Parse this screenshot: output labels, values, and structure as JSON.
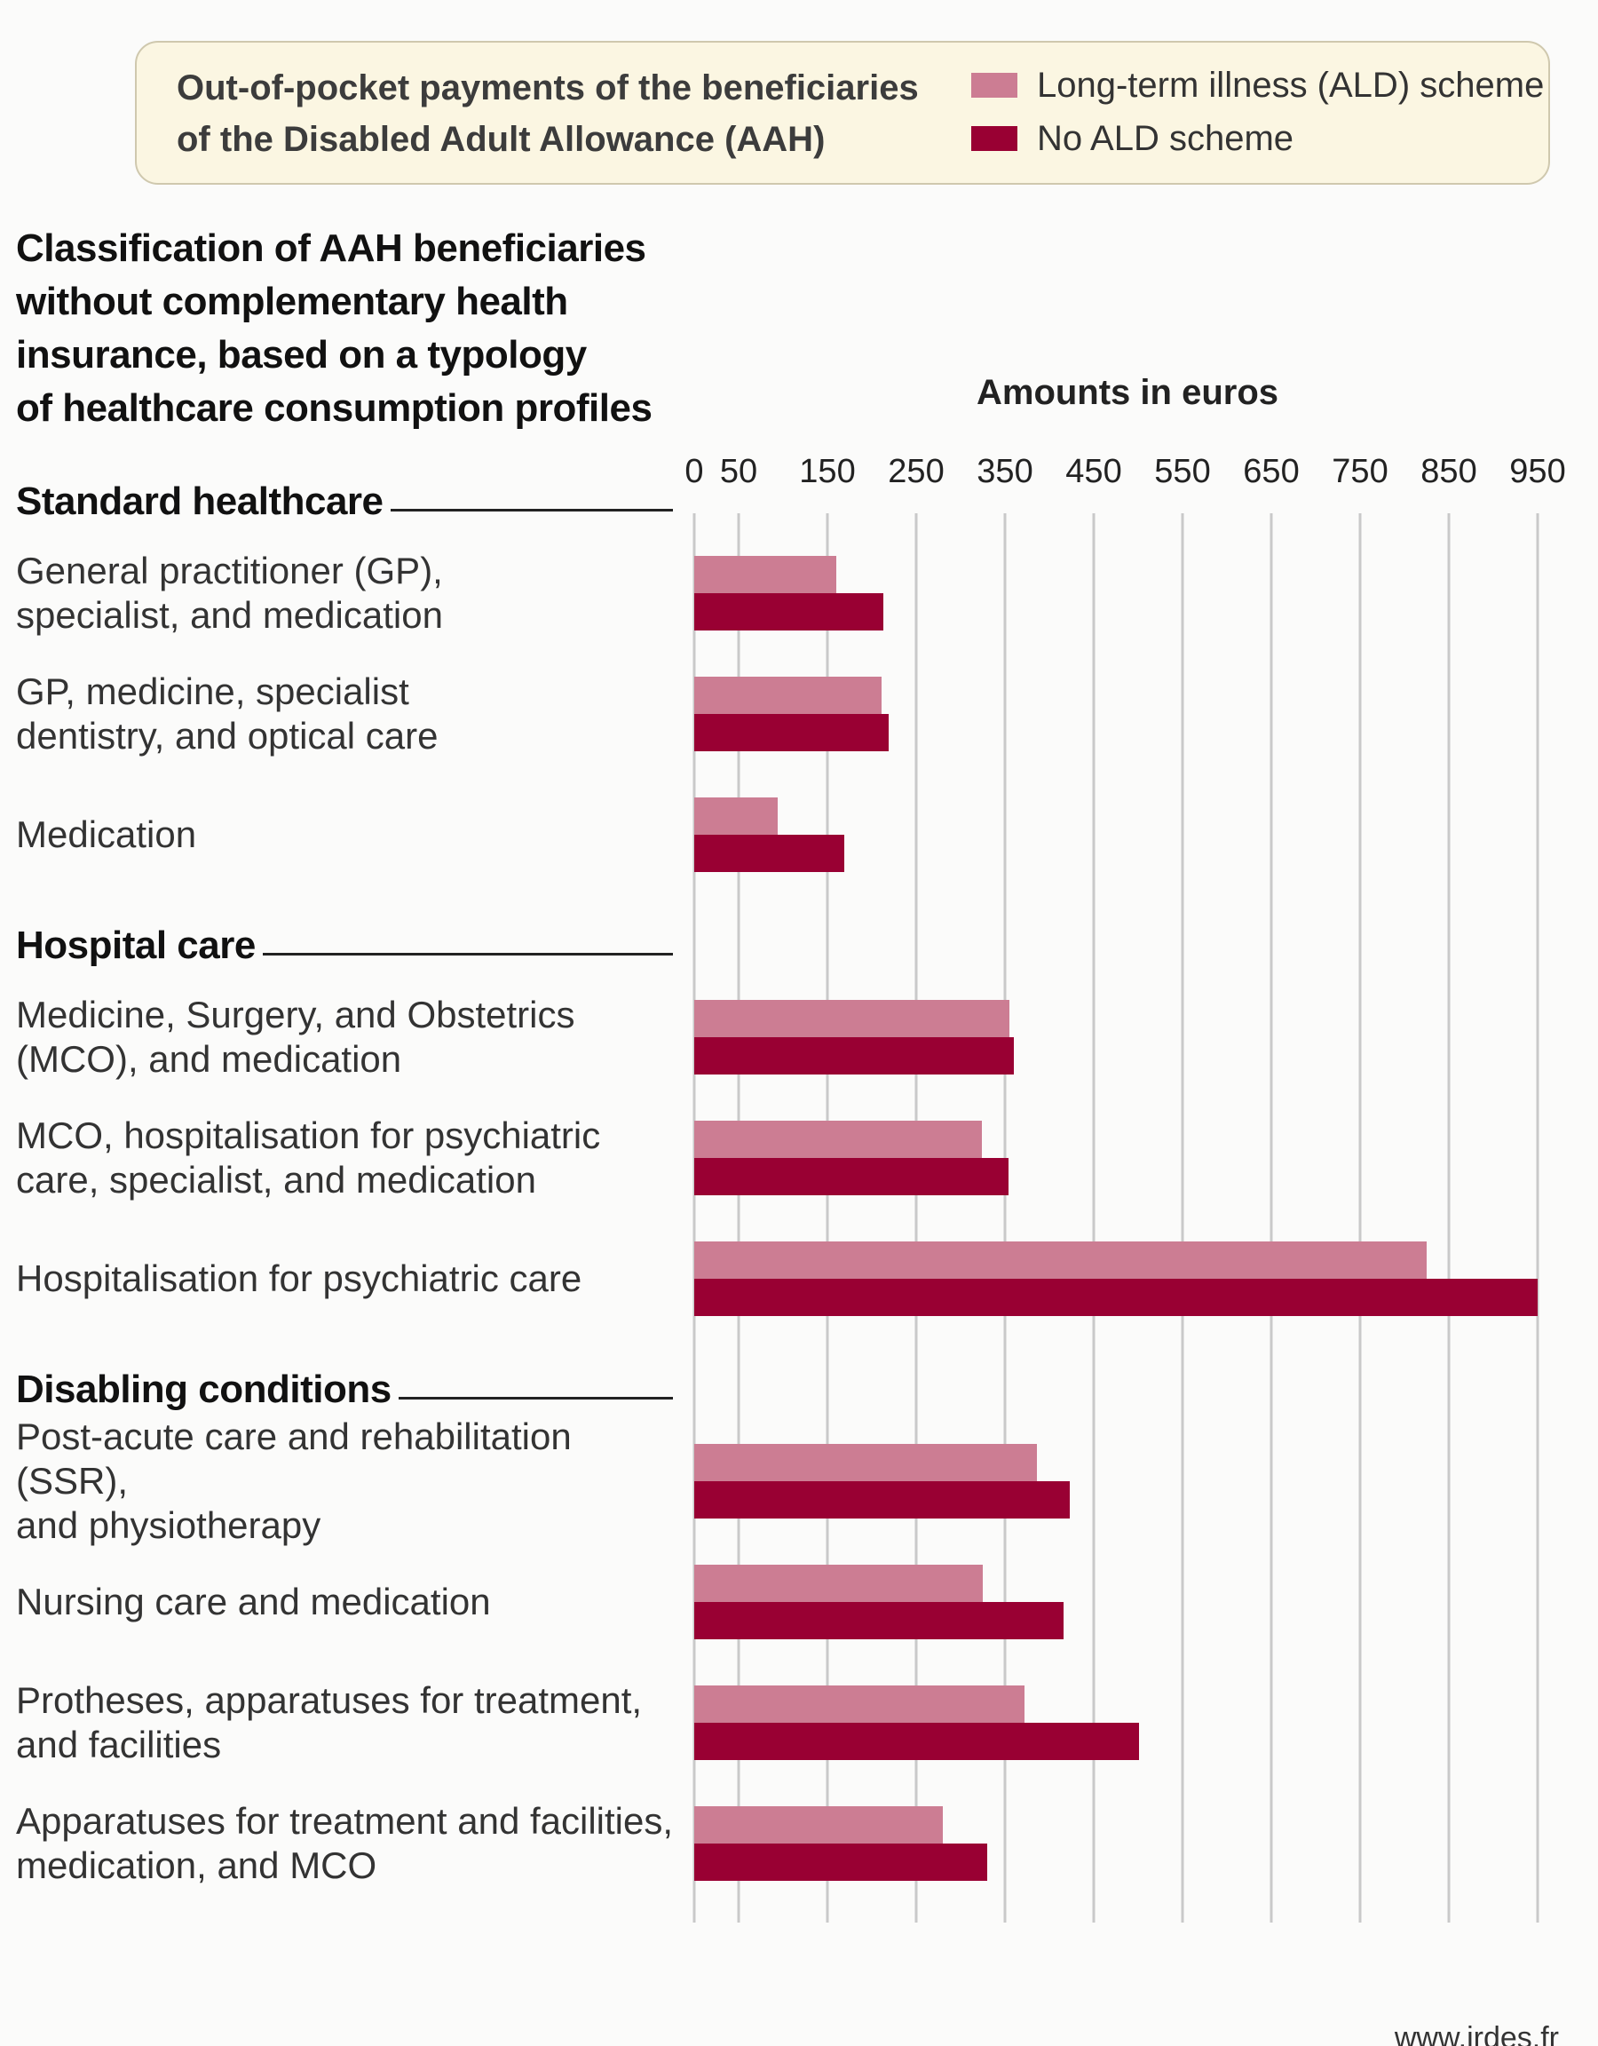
{
  "legend": {
    "title": "Out-of-pocket payments of the beneficiaries\nof the Disabled Adult Allowance (AAH)",
    "items": [
      {
        "label": "Long-term illness (ALD) scheme",
        "color": "#cc7d93"
      },
      {
        "label": "No ALD scheme",
        "color": "#990033"
      }
    ]
  },
  "classification_title": "Classification of AAH beneficiaries\nwithout complementary health\ninsurance, based on a typology\nof healthcare consumption profiles",
  "source": "www.irdes.fr",
  "chart_data": {
    "type": "bar",
    "orientation": "horizontal",
    "xlabel": "Amounts in euros",
    "xlim": [
      0,
      950
    ],
    "xticks": [
      0,
      50,
      150,
      250,
      350,
      450,
      550,
      650,
      750,
      850,
      950
    ],
    "grid": true,
    "legend_position": "top-right",
    "groups": [
      {
        "name": "Standard healthcare",
        "categories": [
          {
            "label": "General practitioner (GP),\nspecialist, and medication",
            "values": [
              160,
              213
            ]
          },
          {
            "label": "GP, medicine, specialist\ndentistry, and optical care",
            "values": [
              211,
              219
            ]
          },
          {
            "label": "Medication",
            "values": [
              94,
              169
            ]
          }
        ]
      },
      {
        "name": "Hospital care",
        "categories": [
          {
            "label": "Medicine, Surgery, and Obstetrics\n(MCO), and medication",
            "values": [
              355,
              360
            ]
          },
          {
            "label": "MCO, hospitalisation for psychiatric\ncare, specialist, and medication",
            "values": [
              324,
              354
            ]
          },
          {
            "label": "Hospitalisation for psychiatric care",
            "values": [
              825,
              950
            ]
          }
        ]
      },
      {
        "name": "Disabling conditions",
        "categories": [
          {
            "label": "Post-acute care and rehabilitation (SSR),\nand physiotherapy",
            "values": [
              386,
              423
            ]
          },
          {
            "label": "Nursing care and medication",
            "values": [
              325,
              416
            ]
          },
          {
            "label": "Protheses, apparatuses for treatment,\nand facilities",
            "values": [
              372,
              501
            ]
          },
          {
            "label": "Apparatuses for treatment and facilities,\nmedication, and MCO",
            "values": [
              280,
              330
            ]
          }
        ]
      }
    ],
    "series": [
      {
        "name": "Long-term illness (ALD) scheme",
        "color": "#cc7d93"
      },
      {
        "name": "No ALD scheme",
        "color": "#990033"
      }
    ]
  }
}
